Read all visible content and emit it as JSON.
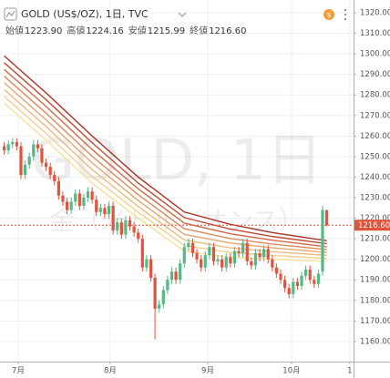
{
  "chart_data": {
    "type": "candlestick",
    "title": "GOLD (US$/OZ), 1日, TVC",
    "currency_badge": "$",
    "ohlc": [
      {
        "label": "始値",
        "value": "1223.90"
      },
      {
        "label": "高値",
        "value": "1224.16"
      },
      {
        "label": "安値",
        "value": "1215.99"
      },
      {
        "label": "終値",
        "value": "1216.60"
      }
    ],
    "watermark": [
      "GOLD, 1日",
      "金（米ドル／オンス）"
    ],
    "up_color": "#53b987",
    "down_color": "#e0533c",
    "x": [
      0,
      1,
      2,
      3,
      4,
      5,
      6,
      7,
      8,
      9,
      10,
      11,
      12,
      13,
      14,
      15,
      16,
      17,
      18,
      19,
      20,
      21,
      22,
      23,
      24,
      25,
      26,
      27,
      28,
      29,
      30,
      31,
      32,
      33,
      34,
      35,
      36,
      37,
      38,
      39,
      40,
      41,
      42,
      43,
      44,
      45,
      46,
      47,
      48,
      49,
      50,
      51,
      52,
      53,
      54,
      55,
      56,
      57,
      58,
      59,
      60,
      61,
      62,
      63,
      64,
      65,
      66,
      67,
      68,
      69,
      70,
      71,
      72,
      73,
      74,
      75,
      76,
      77
    ],
    "open": [
      1255,
      1253,
      1256,
      1257,
      1255,
      1241,
      1246,
      1250,
      1256,
      1254,
      1247,
      1245,
      1241,
      1238,
      1231,
      1228,
      1224,
      1228,
      1232,
      1226,
      1230,
      1233,
      1229,
      1223,
      1225,
      1222,
      1226,
      1214,
      1218,
      1212,
      1219,
      1216,
      1213,
      1210,
      1196,
      1200,
      1191,
      1176,
      1178,
      1185,
      1190,
      1194,
      1190,
      1198,
      1206,
      1208,
      1203,
      1200,
      1196,
      1202,
      1206,
      1199,
      1200,
      1196,
      1201,
      1198,
      1204,
      1203,
      1208,
      1199,
      1197,
      1203,
      1201,
      1205,
      1200,
      1196,
      1193,
      1190,
      1186,
      1183,
      1189,
      1187,
      1192,
      1195,
      1190,
      1188,
      1194,
      1223.9
    ],
    "high": [
      1257,
      1258,
      1259,
      1259,
      1257,
      1248,
      1252,
      1258,
      1258,
      1256,
      1249,
      1247,
      1243,
      1240,
      1233,
      1230,
      1230,
      1234,
      1234,
      1232,
      1235,
      1235,
      1231,
      1227,
      1227,
      1228,
      1228,
      1220,
      1220,
      1221,
      1221,
      1218,
      1215,
      1212,
      1202,
      1202,
      1193,
      1180,
      1187,
      1192,
      1196,
      1196,
      1200,
      1208,
      1210,
      1210,
      1205,
      1202,
      1204,
      1208,
      1208,
      1202,
      1202,
      1203,
      1203,
      1206,
      1206,
      1210,
      1210,
      1201,
      1205,
      1205,
      1207,
      1207,
      1202,
      1198,
      1195,
      1192,
      1188,
      1191,
      1191,
      1194,
      1197,
      1197,
      1192,
      1195,
      1226,
      1224.16
    ],
    "low": [
      1251,
      1251,
      1254,
      1253,
      1239,
      1239,
      1244,
      1248,
      1252,
      1245,
      1243,
      1239,
      1236,
      1229,
      1226,
      1222,
      1222,
      1226,
      1224,
      1224,
      1228,
      1227,
      1221,
      1221,
      1220,
      1220,
      1212,
      1212,
      1210,
      1210,
      1214,
      1211,
      1208,
      1194,
      1194,
      1189,
      1161,
      1174,
      1176,
      1183,
      1188,
      1188,
      1188,
      1196,
      1204,
      1201,
      1198,
      1194,
      1194,
      1200,
      1197,
      1197,
      1194,
      1194,
      1196,
      1196,
      1201,
      1201,
      1197,
      1195,
      1195,
      1199,
      1199,
      1198,
      1194,
      1191,
      1188,
      1184,
      1181,
      1181,
      1185,
      1185,
      1190,
      1188,
      1186,
      1186,
      1192,
      1215.99
    ],
    "close": [
      1253,
      1256,
      1257,
      1255,
      1241,
      1246,
      1250,
      1256,
      1254,
      1247,
      1245,
      1241,
      1238,
      1231,
      1228,
      1224,
      1228,
      1232,
      1226,
      1230,
      1233,
      1229,
      1223,
      1225,
      1222,
      1226,
      1214,
      1218,
      1212,
      1219,
      1216,
      1213,
      1210,
      1196,
      1200,
      1191,
      1176,
      1178,
      1185,
      1190,
      1194,
      1190,
      1198,
      1206,
      1208,
      1203,
      1200,
      1196,
      1202,
      1206,
      1199,
      1200,
      1196,
      1201,
      1198,
      1204,
      1203,
      1208,
      1199,
      1197,
      1203,
      1201,
      1205,
      1200,
      1196,
      1193,
      1190,
      1186,
      1183,
      1189,
      1187,
      1192,
      1195,
      1190,
      1188,
      1193,
      1224,
      1216.6
    ],
    "ribbons": [
      {
        "color": "#a83224",
        "x": [
          0,
          10,
          21,
          32,
          43,
          54,
          64,
          77
        ],
        "values": [
          1299,
          1281,
          1260,
          1240,
          1223,
          1217,
          1213,
          1209
        ]
      },
      {
        "color": "#c04a32",
        "x": [
          0,
          10,
          21,
          32,
          43,
          54,
          64,
          77
        ],
        "values": [
          1295.7,
          1277.7,
          1256.7,
          1237.1,
          1220.3,
          1214.7,
          1211.1,
          1207.6
        ]
      },
      {
        "color": "#d06a45",
        "x": [
          0,
          10,
          21,
          32,
          43,
          54,
          64,
          77
        ],
        "values": [
          1292.4,
          1274.4,
          1253.4,
          1234.3,
          1217.6,
          1212.4,
          1209.3,
          1206.1
        ]
      },
      {
        "color": "#dc8a5a",
        "x": [
          0,
          10,
          21,
          32,
          43,
          54,
          64,
          77
        ],
        "values": [
          1289.1,
          1271.1,
          1250.1,
          1231.4,
          1214.9,
          1210.1,
          1207.4,
          1204.7
        ]
      },
      {
        "color": "#e6a56e",
        "x": [
          0,
          10,
          21,
          32,
          43,
          54,
          64,
          77
        ],
        "values": [
          1285.9,
          1267.9,
          1246.9,
          1228.6,
          1212.1,
          1207.9,
          1205.6,
          1203.3
        ]
      },
      {
        "color": "#eebc80",
        "x": [
          0,
          10,
          21,
          32,
          43,
          54,
          64,
          77
        ],
        "values": [
          1282.6,
          1264.6,
          1243.6,
          1225.7,
          1209.4,
          1205.6,
          1203.7,
          1201.9
        ]
      },
      {
        "color": "#f3d08e",
        "x": [
          0,
          10,
          21,
          32,
          43,
          54,
          64,
          77
        ],
        "values": [
          1279.3,
          1261.3,
          1240.3,
          1222.9,
          1206.7,
          1203.3,
          1201.9,
          1200.4
        ]
      },
      {
        "color": "#f6e29a",
        "x": [
          0,
          10,
          21,
          32,
          43,
          54,
          64,
          77
        ],
        "values": [
          1276,
          1258,
          1237,
          1220,
          1204,
          1201,
          1200,
          1199
        ]
      }
    ],
    "price_line": {
      "value": 1216.6,
      "label": "1216.60",
      "color": "#e0533c"
    },
    "xlim": [
      -1,
      83.4
    ],
    "xticks": [
      {
        "value": 3.35,
        "label": "7月"
      },
      {
        "value": 25.3,
        "label": "8月"
      },
      {
        "value": 48.6,
        "label": "9月"
      },
      {
        "value": 68.6,
        "label": "10月"
      },
      {
        "value": 82.5,
        "label": "1"
      }
    ],
    "ylim": [
      1150.2,
      1326.2
    ],
    "yticks": [
      {
        "value": 1160,
        "label": "1160.00"
      },
      {
        "value": 1170,
        "label": "1170.00"
      },
      {
        "value": 1180,
        "label": "1180.00"
      },
      {
        "value": 1190,
        "label": "1190.00"
      },
      {
        "value": 1200,
        "label": "1200.00"
      },
      {
        "value": 1210,
        "label": "1210.00"
      },
      {
        "value": 1220,
        "label": "1220.00"
      },
      {
        "value": 1230,
        "label": "1230.00"
      },
      {
        "value": 1240,
        "label": "1240.00"
      },
      {
        "value": 1250,
        "label": "1250.00"
      },
      {
        "value": 1260,
        "label": "1260.00"
      },
      {
        "value": 1270,
        "label": "1270.00"
      },
      {
        "value": 1280,
        "label": "1280.00"
      },
      {
        "value": 1290,
        "label": "1290.00"
      },
      {
        "value": 1300,
        "label": "1300.00"
      },
      {
        "value": 1310,
        "label": "1310.00"
      },
      {
        "value": 1320,
        "label": "1320.00"
      }
    ],
    "grid": true
  }
}
